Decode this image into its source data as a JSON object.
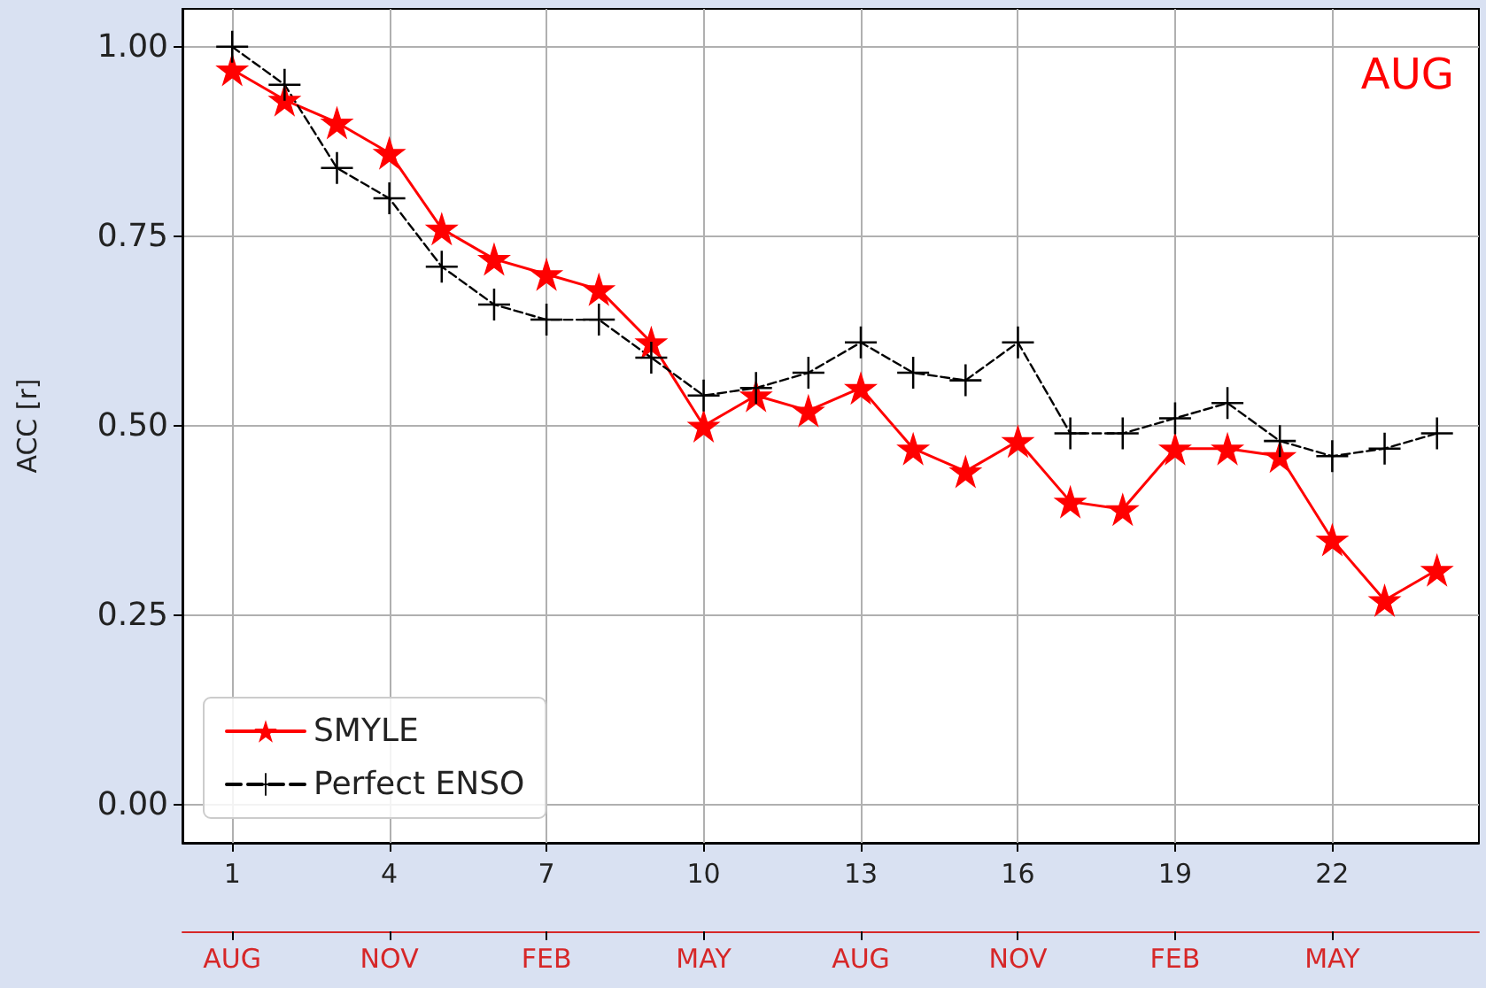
{
  "chart_data": {
    "type": "line",
    "ylabel": "ACC [r]",
    "x": [
      1,
      2,
      3,
      4,
      5,
      6,
      7,
      8,
      9,
      10,
      11,
      12,
      13,
      14,
      15,
      16,
      17,
      18,
      19,
      20,
      21,
      22,
      23,
      24
    ],
    "series": [
      {
        "name": "SMYLE",
        "color": "#ff0000",
        "marker": "star",
        "line_style": "solid",
        "values": [
          0.97,
          0.93,
          0.9,
          0.86,
          0.76,
          0.72,
          0.7,
          0.68,
          0.61,
          0.5,
          0.54,
          0.52,
          0.55,
          0.47,
          0.44,
          0.48,
          0.4,
          0.39,
          0.47,
          0.47,
          0.46,
          0.35,
          0.27,
          0.31
        ]
      },
      {
        "name": "Perfect ENSO",
        "color": "#000000",
        "marker": "cross",
        "line_style": "dashed",
        "values": [
          1.0,
          0.95,
          0.84,
          0.8,
          0.71,
          0.66,
          0.64,
          0.64,
          0.59,
          0.54,
          0.55,
          0.57,
          0.61,
          0.57,
          0.56,
          0.61,
          0.49,
          0.49,
          0.51,
          0.53,
          0.48,
          0.46,
          0.47,
          0.49
        ]
      }
    ],
    "xlim": [
      0.05,
      24.8
    ],
    "xticks": [
      1,
      4,
      7,
      10,
      13,
      16,
      19,
      22
    ],
    "ylim": [
      -0.05,
      1.05
    ],
    "yticks": [
      {
        "value": 0,
        "label": "0.00"
      },
      {
        "value": 0.25,
        "label": "0.25"
      },
      {
        "value": 0.5,
        "label": "0.50"
      },
      {
        "value": 0.75,
        "label": "0.75"
      },
      {
        "value": 1,
        "label": "1.00"
      }
    ],
    "annotations": [
      "AUG",
      {
        "text": "AUG",
        "x": 1
      },
      {
        "text": "NOV",
        "x": 4
      },
      {
        "text": "FEB",
        "x": 7
      },
      {
        "text": "MAY",
        "x": 10
      },
      {
        "text": "AUG",
        "x": 13
      },
      {
        "text": "NOV",
        "x": 16
      },
      {
        "text": "FEB",
        "x": 19
      },
      {
        "text": "MAY",
        "x": 22
      }
    ],
    "grid": true,
    "legend": "bottom left"
  }
}
